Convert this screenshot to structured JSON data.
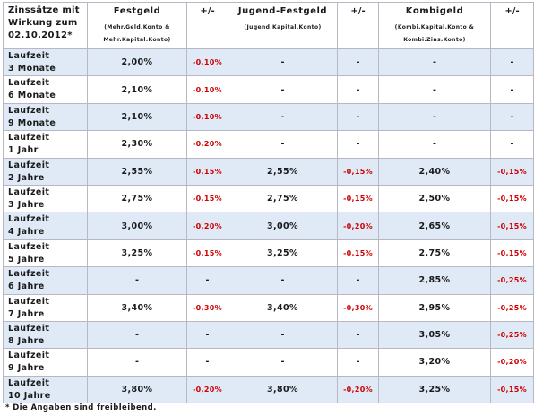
{
  "header": {
    "corner": "Zinssätze mit\nWirkung zum\n02.10.2012*",
    "cols": [
      {
        "title": "Festgeld",
        "sub": "(Mehr.Geld.Konto &\nMehr.Kapital.Konto)"
      },
      {
        "title": "+/-",
        "sub": ""
      },
      {
        "title": "Jugend-Festgeld",
        "sub": "(Jugend.Kapital.Konto)"
      },
      {
        "title": "+/-",
        "sub": ""
      },
      {
        "title": "Kombigeld",
        "sub": "(Kombi.Kapital.Konto &\nKombi.Zins.Konto)"
      },
      {
        "title": "+/-",
        "sub": ""
      }
    ]
  },
  "rows": [
    {
      "l1": "Laufzeit",
      "l2": "3 Monate",
      "c": [
        "2,00%",
        "-0,10%",
        "-",
        "-",
        "-",
        "-"
      ]
    },
    {
      "l1": "Laufzeit",
      "l2": "6 Monate",
      "c": [
        "2,10%",
        "-0,10%",
        "-",
        "-",
        "-",
        "-"
      ]
    },
    {
      "l1": "Laufzeit",
      "l2": "9 Monate",
      "c": [
        "2,10%",
        "-0,10%",
        "-",
        "-",
        "-",
        "-"
      ]
    },
    {
      "l1": "Laufzeit",
      "l2": "1 Jahr",
      "c": [
        "2,30%",
        "-0,20%",
        "-",
        "-",
        "-",
        "-"
      ]
    },
    {
      "l1": "Laufzeit",
      "l2": "2 Jahre",
      "c": [
        "2,55%",
        "-0,15%",
        "2,55%",
        "-0,15%",
        "2,40%",
        "-0,15%"
      ]
    },
    {
      "l1": "Laufzeit",
      "l2": "3 Jahre",
      "c": [
        "2,75%",
        "-0,15%",
        "2,75%",
        "-0,15%",
        "2,50%",
        "-0,15%"
      ]
    },
    {
      "l1": "Laufzeit",
      "l2": "4 Jahre",
      "c": [
        "3,00%",
        "-0,20%",
        "3,00%",
        "-0,20%",
        "2,65%",
        "-0,15%"
      ]
    },
    {
      "l1": "Laufzeit",
      "l2": "5 Jahre",
      "c": [
        "3,25%",
        "-0,15%",
        "3,25%",
        "-0,15%",
        "2,75%",
        "-0,15%"
      ]
    },
    {
      "l1": "Laufzeit",
      "l2": "6 Jahre",
      "c": [
        "-",
        "-",
        "-",
        "-",
        "2,85%",
        "-0,25%"
      ]
    },
    {
      "l1": "Laufzeit",
      "l2": "7 Jahre",
      "c": [
        "3,40%",
        "-0,30%",
        "3,40%",
        "-0,30%",
        "2,95%",
        "-0,25%"
      ]
    },
    {
      "l1": "Laufzeit",
      "l2": "8 Jahre",
      "c": [
        "-",
        "-",
        "-",
        "-",
        "3,05%",
        "-0,25%"
      ]
    },
    {
      "l1": "Laufzeit",
      "l2": "9 Jahre",
      "c": [
        "-",
        "-",
        "-",
        "-",
        "3,20%",
        "-0,20%"
      ]
    },
    {
      "l1": "Laufzeit",
      "l2": "10 Jahre",
      "c": [
        "3,80%",
        "-0,20%",
        "3,80%",
        "-0,20%",
        "3,25%",
        "-0,15%"
      ]
    }
  ],
  "footnote": "* Die Angaben sind freibleibend.",
  "colors": {
    "negative": "#d00000",
    "stripe": "#dfeaf6",
    "border": "#b8b8c4"
  }
}
